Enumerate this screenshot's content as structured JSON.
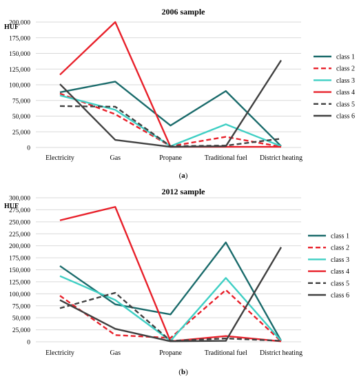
{
  "chart_data": [
    {
      "type": "line",
      "title": "2006 sample",
      "ylabel": "HUF",
      "panel_label": "a",
      "categories": [
        "Electricity",
        "Gas",
        "Propane",
        "Traditional fuel",
        "District heating"
      ],
      "ylim": [
        0,
        200000
      ],
      "ytick_labels": [
        "0",
        "25,000",
        "50,000",
        "75,000",
        "100,000",
        "125,000",
        "150,000",
        "175,000",
        "200,000"
      ],
      "grid": true,
      "legend_position": "right",
      "series": [
        {
          "name": "class 1",
          "color": "#1a6b6b",
          "dash": "solid",
          "values": [
            88000,
            105000,
            35000,
            90000,
            2000
          ]
        },
        {
          "name": "class 2",
          "color": "#e8202a",
          "dash": "dashed",
          "values": [
            86000,
            53000,
            2000,
            17000,
            1000
          ]
        },
        {
          "name": "class 3",
          "color": "#3fcfc4",
          "dash": "solid",
          "values": [
            83000,
            60000,
            2000,
            37000,
            2000
          ]
        },
        {
          "name": "class 4",
          "color": "#e8202a",
          "dash": "solid",
          "values": [
            116000,
            200000,
            1000,
            1000,
            1000
          ]
        },
        {
          "name": "class 5",
          "color": "#404040",
          "dash": "dashed",
          "values": [
            66000,
            65000,
            2000,
            3000,
            14000
          ]
        },
        {
          "name": "class 6",
          "color": "#404040",
          "dash": "solid",
          "values": [
            101000,
            12000,
            1000,
            2000,
            139000
          ]
        }
      ]
    },
    {
      "type": "line",
      "title": "2012 sample",
      "ylabel": "HUF",
      "panel_label": "b",
      "categories": [
        "Electricity",
        "Gas",
        "Propane",
        "Traditional fuel",
        "District heating"
      ],
      "ylim": [
        0,
        300000
      ],
      "ytick_labels": [
        "0",
        "25,000",
        "50,000",
        "75,000",
        "100,000",
        "125,000",
        "150,000",
        "175,000",
        "200,000",
        "225,000",
        "250,000",
        "275,000",
        "300,000"
      ],
      "grid": true,
      "legend_position": "right",
      "series": [
        {
          "name": "class 1",
          "color": "#1a6b6b",
          "dash": "solid",
          "values": [
            158000,
            78000,
            57000,
            207000,
            2000
          ]
        },
        {
          "name": "class 2",
          "color": "#e8202a",
          "dash": "dashed",
          "values": [
            96000,
            14000,
            8000,
            108000,
            1000
          ]
        },
        {
          "name": "class 3",
          "color": "#3fcfc4",
          "dash": "solid",
          "values": [
            137000,
            87000,
            2000,
            133000,
            2000
          ]
        },
        {
          "name": "class 4",
          "color": "#e8202a",
          "dash": "solid",
          "values": [
            253000,
            281000,
            1000,
            12000,
            1000
          ]
        },
        {
          "name": "class 5",
          "color": "#404040",
          "dash": "dashed",
          "values": [
            70000,
            102000,
            2000,
            7000,
            2000
          ]
        },
        {
          "name": "class 6",
          "color": "#404040",
          "dash": "solid",
          "values": [
            87000,
            27000,
            1000,
            2000,
            197000
          ]
        }
      ]
    }
  ]
}
